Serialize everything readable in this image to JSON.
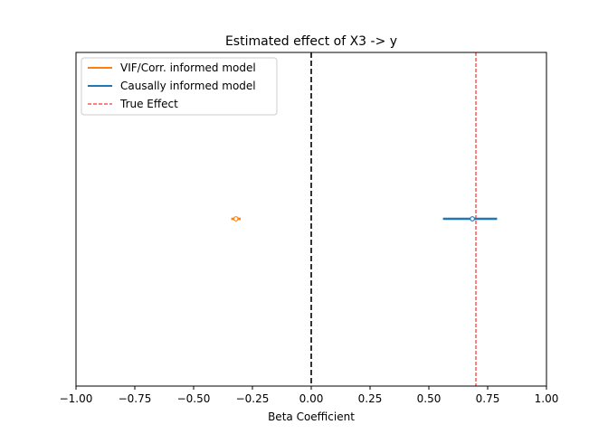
{
  "chart_data": {
    "type": "forest",
    "title": "Estimated effect of X3 -> y",
    "xlabel": "Beta Coefficient",
    "ylabel": "",
    "xlim": [
      -1.0,
      1.0
    ],
    "xticks": [
      -1.0,
      -0.75,
      -0.5,
      -0.25,
      0.0,
      0.25,
      0.5,
      0.75,
      1.0
    ],
    "xtick_labels": [
      "−1.00",
      "−0.75",
      "−0.50",
      "−0.25",
      "0.00",
      "0.25",
      "0.50",
      "0.75",
      "1.00"
    ],
    "yticks_shown": false,
    "grid": false,
    "legend_position": "upper-left",
    "series": [
      {
        "name": "VIF/Corr. informed model",
        "color": "#ff7f0e",
        "estimate": -0.32,
        "ci_low": -0.34,
        "ci_high": -0.3
      },
      {
        "name": "Causally informed model",
        "color": "#1f77b4",
        "estimate": 0.685,
        "ci_low": 0.56,
        "ci_high": 0.79
      }
    ],
    "reference_lines": [
      {
        "name": "",
        "value": 0.0,
        "color": "#000000",
        "style": "dashed"
      },
      {
        "name": "True Effect",
        "value": 0.7,
        "color": "#ff0000",
        "style": "dashed"
      }
    ]
  }
}
